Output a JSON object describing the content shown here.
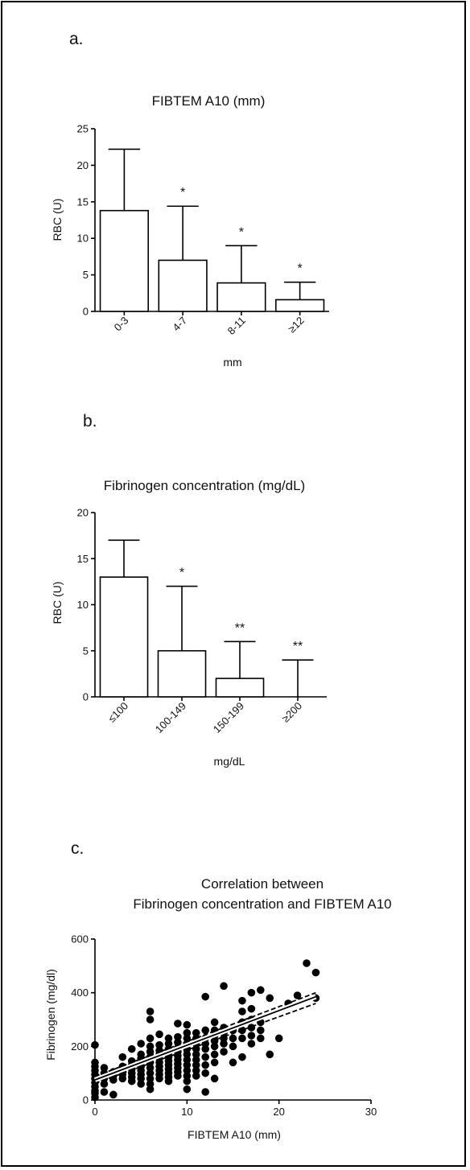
{
  "panels": {
    "a": {
      "letter": "a.",
      "chart_data": {
        "type": "bar",
        "title": "FIBTEM A10 (mm)",
        "xlabel": "mm",
        "ylabel": "RBC (U)",
        "categories": [
          "0-3",
          "4-7",
          "8-11",
          "≥12"
        ],
        "values": [
          13.8,
          7.0,
          3.9,
          1.6
        ],
        "error_upper": [
          22.2,
          14.4,
          9.0,
          4.0
        ],
        "annotations": [
          "",
          "*",
          "*",
          "*"
        ],
        "ylim": [
          0,
          25
        ],
        "yticks": [
          0,
          5,
          10,
          15,
          20,
          25
        ]
      }
    },
    "b": {
      "letter": "b.",
      "chart_data": {
        "type": "bar",
        "title": "Fibrinogen concentration (mg/dL)",
        "xlabel": "mg/dL",
        "ylabel": "RBC (U)",
        "categories": [
          "≤100",
          "100-149",
          "150-199",
          "≥200"
        ],
        "values": [
          13,
          5,
          2,
          0
        ],
        "error_upper": [
          17,
          12,
          6,
          4
        ],
        "annotations": [
          "",
          "*",
          "**",
          "**"
        ],
        "ylim": [
          0,
          20
        ],
        "yticks": [
          0,
          5,
          10,
          15,
          20
        ]
      }
    },
    "c": {
      "letter": "c.",
      "chart_data": {
        "type": "scatter",
        "title_lines": [
          "Correlation between",
          "Fibrinogen concentration and FIBTEM A10"
        ],
        "xlabel": "FIBTEM A10 (mm)",
        "ylabel": "Fibrinogen (mg/dl)",
        "xlim": [
          0,
          30
        ],
        "ylim": [
          0,
          600
        ],
        "xticks": [
          0,
          10,
          20,
          30
        ],
        "yticks": [
          0,
          200,
          400,
          600
        ],
        "points": [
          [
            0,
            10
          ],
          [
            0,
            25
          ],
          [
            0,
            35
          ],
          [
            0,
            50
          ],
          [
            0,
            65
          ],
          [
            0,
            80
          ],
          [
            0,
            95
          ],
          [
            0,
            110
          ],
          [
            0,
            125
          ],
          [
            0,
            140
          ],
          [
            0,
            205
          ],
          [
            1,
            30
          ],
          [
            1,
            60
          ],
          [
            1,
            80
          ],
          [
            1,
            100
          ],
          [
            1,
            120
          ],
          [
            2,
            20
          ],
          [
            2,
            75
          ],
          [
            2,
            90
          ],
          [
            2,
            105
          ],
          [
            3,
            80
          ],
          [
            3,
            95
          ],
          [
            3,
            110
          ],
          [
            3,
            125
          ],
          [
            3,
            160
          ],
          [
            4,
            70
          ],
          [
            4,
            85
          ],
          [
            4,
            100
          ],
          [
            4,
            115
          ],
          [
            4,
            130
          ],
          [
            4,
            145
          ],
          [
            4,
            190
          ],
          [
            5,
            60
          ],
          [
            5,
            80
          ],
          [
            5,
            95
          ],
          [
            5,
            110
          ],
          [
            5,
            125
          ],
          [
            5,
            140
          ],
          [
            5,
            155
          ],
          [
            5,
            170
          ],
          [
            5,
            210
          ],
          [
            6,
            40
          ],
          [
            6,
            60
          ],
          [
            6,
            80
          ],
          [
            6,
            100
          ],
          [
            6,
            120
          ],
          [
            6,
            140
          ],
          [
            6,
            160
          ],
          [
            6,
            180
          ],
          [
            6,
            200
          ],
          [
            6,
            230
          ],
          [
            6,
            300
          ],
          [
            6,
            330
          ],
          [
            7,
            80
          ],
          [
            7,
            95
          ],
          [
            7,
            110
          ],
          [
            7,
            125
          ],
          [
            7,
            140
          ],
          [
            7,
            155
          ],
          [
            7,
            170
          ],
          [
            7,
            185
          ],
          [
            7,
            205
          ],
          [
            7,
            245
          ],
          [
            8,
            70
          ],
          [
            8,
            85
          ],
          [
            8,
            100
          ],
          [
            8,
            115
          ],
          [
            8,
            130
          ],
          [
            8,
            145
          ],
          [
            8,
            160
          ],
          [
            8,
            175
          ],
          [
            8,
            190
          ],
          [
            8,
            210
          ],
          [
            8,
            230
          ],
          [
            9,
            90
          ],
          [
            9,
            105
          ],
          [
            9,
            120
          ],
          [
            9,
            135
          ],
          [
            9,
            150
          ],
          [
            9,
            165
          ],
          [
            9,
            180
          ],
          [
            9,
            195
          ],
          [
            9,
            215
          ],
          [
            9,
            235
          ],
          [
            9,
            285
          ],
          [
            10,
            40
          ],
          [
            10,
            70
          ],
          [
            10,
            90
          ],
          [
            10,
            110
          ],
          [
            10,
            130
          ],
          [
            10,
            150
          ],
          [
            10,
            170
          ],
          [
            10,
            190
          ],
          [
            10,
            210
          ],
          [
            10,
            230
          ],
          [
            10,
            250
          ],
          [
            10,
            280
          ],
          [
            11,
            90
          ],
          [
            11,
            110
          ],
          [
            11,
            130
          ],
          [
            11,
            150
          ],
          [
            11,
            170
          ],
          [
            11,
            190
          ],
          [
            11,
            210
          ],
          [
            11,
            230
          ],
          [
            11,
            250
          ],
          [
            12,
            30
          ],
          [
            12,
            100
          ],
          [
            12,
            130
          ],
          [
            12,
            160
          ],
          [
            12,
            190
          ],
          [
            12,
            210
          ],
          [
            12,
            230
          ],
          [
            12,
            260
          ],
          [
            12,
            385
          ],
          [
            13,
            80
          ],
          [
            13,
            140
          ],
          [
            13,
            170
          ],
          [
            13,
            200
          ],
          [
            13,
            220
          ],
          [
            13,
            240
          ],
          [
            13,
            260
          ],
          [
            13,
            290
          ],
          [
            14,
            180
          ],
          [
            14,
            210
          ],
          [
            14,
            230
          ],
          [
            14,
            250
          ],
          [
            14,
            270
          ],
          [
            14,
            425
          ],
          [
            15,
            140
          ],
          [
            15,
            200
          ],
          [
            15,
            230
          ],
          [
            15,
            260
          ],
          [
            16,
            160
          ],
          [
            16,
            230
          ],
          [
            16,
            260
          ],
          [
            16,
            290
          ],
          [
            16,
            330
          ],
          [
            16,
            370
          ],
          [
            17,
            210
          ],
          [
            17,
            240
          ],
          [
            17,
            270
          ],
          [
            17,
            300
          ],
          [
            17,
            340
          ],
          [
            17,
            400
          ],
          [
            18,
            230
          ],
          [
            18,
            260
          ],
          [
            18,
            290
          ],
          [
            18,
            410
          ],
          [
            19,
            170
          ],
          [
            19,
            380
          ],
          [
            20,
            230
          ],
          [
            21,
            360
          ],
          [
            22,
            390
          ],
          [
            23,
            510
          ],
          [
            24,
            380
          ],
          [
            24,
            475
          ]
        ],
        "fit": {
          "x": [
            0,
            24
          ],
          "y": [
            75,
            385
          ]
        },
        "ci_lower": {
          "x": [
            0,
            24
          ],
          "y": [
            62,
            360
          ]
        },
        "ci_upper": {
          "x": [
            0,
            24
          ],
          "y": [
            88,
            400
          ]
        }
      }
    }
  }
}
